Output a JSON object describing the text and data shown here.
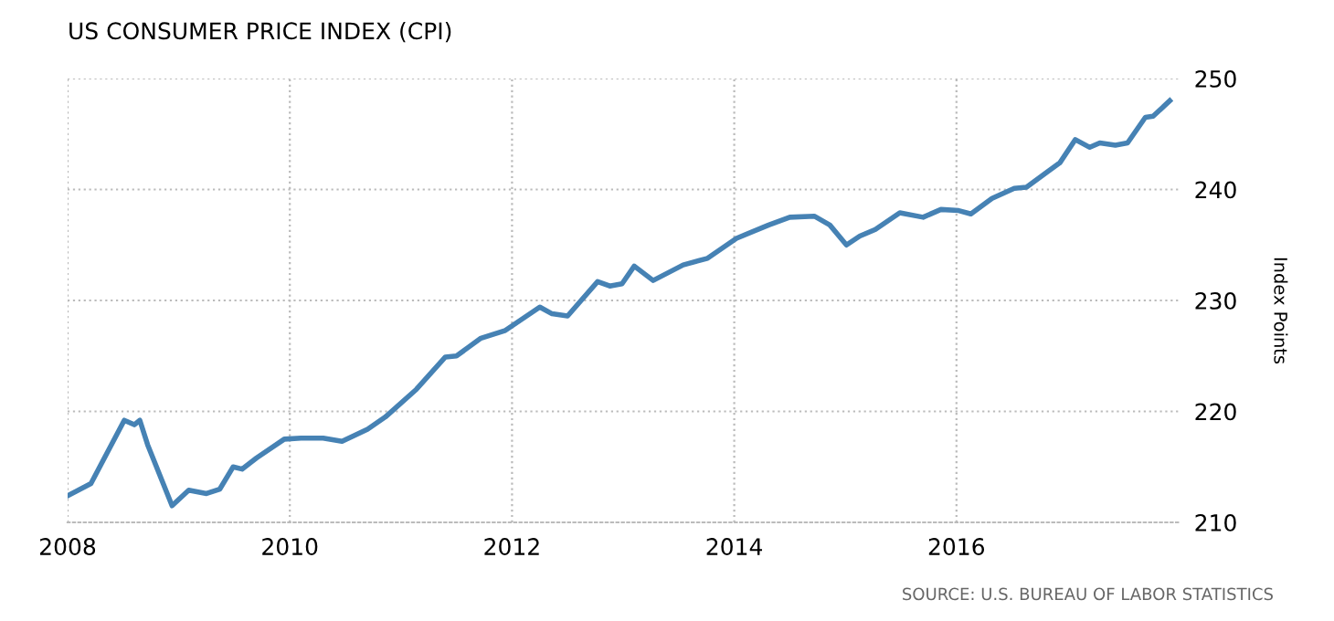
{
  "chart_data": {
    "type": "line",
    "title": "US CONSUMER PRICE INDEX (CPI)",
    "ylabel": "Index Points",
    "annotations": [
      "SOURCE: U.S. BUREAU OF LABOR STATISTICS"
    ],
    "x": [
      2008.0,
      2008.21,
      2008.51,
      2008.6,
      2008.65,
      2008.72,
      2008.94,
      2009.09,
      2009.25,
      2009.37,
      2009.49,
      2009.57,
      2009.7,
      2009.95,
      2010.1,
      2010.3,
      2010.47,
      2010.7,
      2010.86,
      2011.14,
      2011.4,
      2011.5,
      2011.72,
      2011.94,
      2012.25,
      2012.36,
      2012.5,
      2012.77,
      2012.88,
      2012.99,
      2013.1,
      2013.27,
      2013.54,
      2013.76,
      2014.02,
      2014.31,
      2014.5,
      2014.72,
      2014.86,
      2015.01,
      2015.13,
      2015.27,
      2015.49,
      2015.7,
      2015.86,
      2016.02,
      2016.13,
      2016.32,
      2016.52,
      2016.63,
      2016.82,
      2016.93,
      2017.07,
      2017.2,
      2017.29,
      2017.43,
      2017.54,
      2017.7,
      2017.77,
      2017.92
    ],
    "series": [
      {
        "color": "#4682b4",
        "values": [
          212.4,
          213.5,
          219.2,
          218.8,
          219.2,
          217.0,
          211.5,
          212.9,
          212.6,
          213.0,
          215.0,
          214.8,
          215.8,
          217.5,
          217.6,
          217.6,
          217.3,
          218.4,
          219.5,
          222.0,
          224.9,
          225.0,
          226.6,
          227.3,
          229.4,
          228.8,
          228.6,
          231.7,
          231.3,
          231.5,
          233.1,
          231.8,
          233.2,
          233.8,
          235.6,
          236.8,
          237.5,
          237.6,
          236.8,
          235.0,
          235.8,
          236.4,
          237.9,
          237.5,
          238.2,
          238.1,
          237.8,
          239.2,
          240.1,
          240.2,
          241.6,
          242.4,
          244.5,
          243.8,
          244.2,
          244.0,
          244.2,
          246.5,
          246.6,
          248.0
        ]
      }
    ],
    "xlim": [
      2008,
      2018
    ],
    "xticks": [
      2008,
      2010,
      2012,
      2014,
      2016
    ],
    "ylim": [
      210,
      250
    ],
    "yticks": [
      210,
      220,
      230,
      240,
      250
    ],
    "grid": true,
    "legend": false,
    "marker": "none",
    "line_style": "solid"
  }
}
